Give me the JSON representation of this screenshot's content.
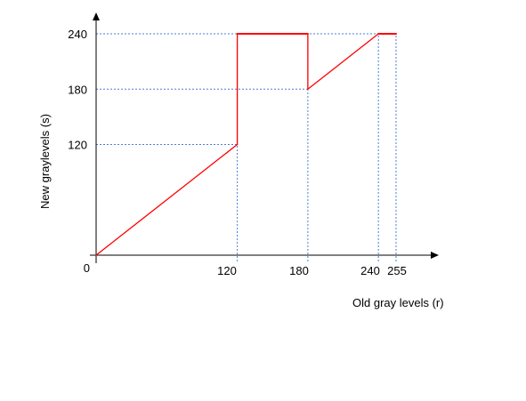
{
  "chart_data": {
    "type": "line",
    "title": "",
    "xlabel": "Old gray levels  (r)",
    "ylabel": "New graylevels    (s)",
    "xlim": [
      0,
      255
    ],
    "ylim": [
      0,
      240
    ],
    "xticks": [
      0,
      120,
      180,
      240,
      255
    ],
    "yticks": [
      120,
      180,
      240
    ],
    "origin_label": "0",
    "x_tick_labels": [
      "120",
      "180",
      "240",
      "255"
    ],
    "y_tick_labels": [
      "120",
      "180",
      "240"
    ],
    "grid": "dotted guide lines at key levels",
    "series": [
      {
        "color": "#ff0000",
        "x": [
          0,
          120,
          120,
          180,
          180,
          240,
          255
        ],
        "y": [
          0,
          120,
          240,
          240,
          180,
          240,
          240
        ]
      }
    ]
  },
  "colors": {
    "curve": "#ff0000",
    "guides": "#4a7fd6",
    "axis": "#000000"
  }
}
